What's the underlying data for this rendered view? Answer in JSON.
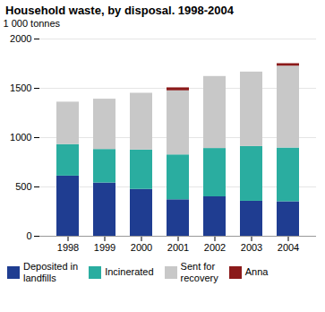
{
  "chart_data": {
    "type": "bar",
    "stacked": true,
    "title": "Household waste, by disposal. 1998-2004",
    "ylabel": "1 000 tonnes",
    "categories": [
      "1998",
      "1999",
      "2000",
      "2001",
      "2002",
      "2003",
      "2004"
    ],
    "series": [
      {
        "name": "Deposited in\nlandfills",
        "color": "#1f3d91",
        "values": [
          610,
          540,
          475,
          370,
          400,
          355,
          350
        ]
      },
      {
        "name": "Incinerated",
        "color": "#2aada0",
        "values": [
          320,
          340,
          400,
          455,
          490,
          555,
          545
        ]
      },
      {
        "name": "Sent for\nrecovery",
        "color": "#c8c8c8",
        "values": [
          430,
          510,
          575,
          650,
          730,
          755,
          830
        ]
      },
      {
        "name": "Anna",
        "color": "#8b1a1a",
        "values": [
          0,
          0,
          0,
          30,
          0,
          0,
          25
        ]
      }
    ],
    "ylim": [
      0,
      2000
    ],
    "yticks": [
      0,
      500,
      1000,
      1500,
      2000
    ],
    "grid": true,
    "legend": "bottom"
  }
}
